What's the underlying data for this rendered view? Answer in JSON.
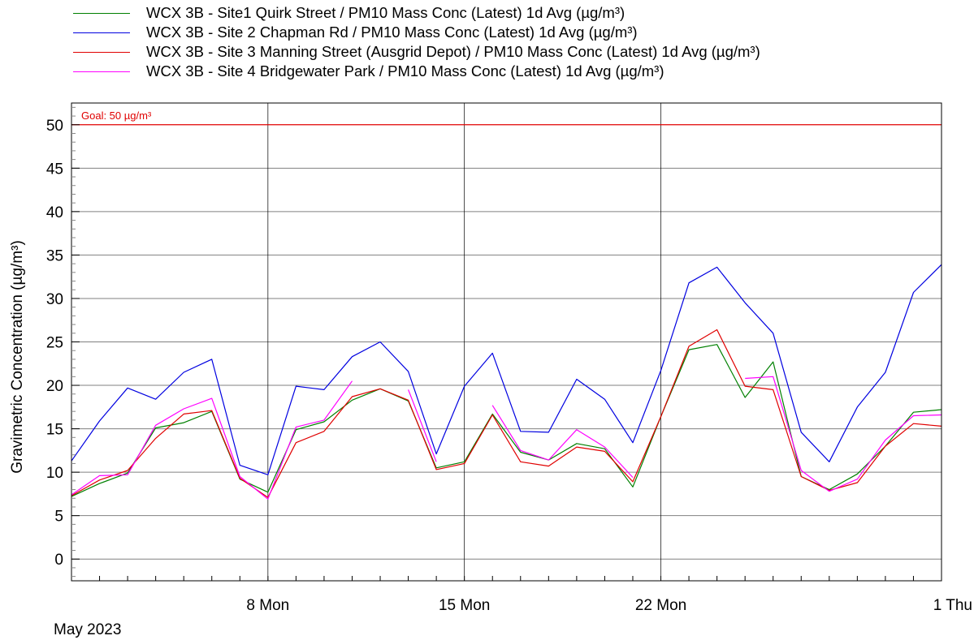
{
  "chart_data": {
    "type": "line",
    "ylabel": "Gravimetric Concentration (µg/m³)",
    "ylim": [
      -2.5,
      52.5
    ],
    "yticks": [
      0,
      5,
      10,
      15,
      20,
      25,
      30,
      35,
      40,
      45,
      50
    ],
    "xlim": [
      "2023-05-01",
      "2023-06-01"
    ],
    "xticks": [
      {
        "date": "2023-05-08",
        "label": "8 Mon"
      },
      {
        "date": "2023-05-15",
        "label": "15 Mon"
      },
      {
        "date": "2023-05-22",
        "label": "22 Mon"
      },
      {
        "date": "2023-06-01",
        "label": "1 Thu"
      }
    ],
    "period_label": "May 2023",
    "grid": true,
    "legend_position": "top",
    "goal": {
      "value": 50,
      "label": "Goal: 50 µg/m³",
      "color": "#e00000"
    },
    "x": [
      "2023-05-01",
      "2023-05-02",
      "2023-05-03",
      "2023-05-04",
      "2023-05-05",
      "2023-05-06",
      "2023-05-07",
      "2023-05-08",
      "2023-05-09",
      "2023-05-10",
      "2023-05-11",
      "2023-05-12",
      "2023-05-13",
      "2023-05-14",
      "2023-05-15",
      "2023-05-16",
      "2023-05-17",
      "2023-05-18",
      "2023-05-19",
      "2023-05-20",
      "2023-05-21",
      "2023-05-22",
      "2023-05-23",
      "2023-05-24",
      "2023-05-25",
      "2023-05-26",
      "2023-05-27",
      "2023-05-28",
      "2023-05-29",
      "2023-05-30",
      "2023-05-31",
      "2023-06-01"
    ],
    "series": [
      {
        "name": "WCX 3B - Site1 Quirk Street / PM10 Mass Conc (Latest) 1d Avg (µg/m³)",
        "color": "#008000",
        "values": [
          7.2,
          8.7,
          9.9,
          15.1,
          15.7,
          17.0,
          9.2,
          7.7,
          14.9,
          15.8,
          18.3,
          19.6,
          18.2,
          10.5,
          11.2,
          16.7,
          12.3,
          11.4,
          13.3,
          12.7,
          8.3,
          16.4,
          24.1,
          24.7,
          18.6,
          22.7,
          9.5,
          8.0,
          9.8,
          13.0,
          16.9,
          17.2
        ]
      },
      {
        "name": "WCX 3B - Site 2 Chapman Rd / PM10 Mass Conc (Latest) 1d Avg (µg/m³)",
        "color": "#0000e0",
        "values": [
          11.3,
          15.9,
          19.7,
          18.4,
          21.5,
          23.0,
          10.8,
          9.7,
          19.9,
          19.5,
          23.3,
          25.0,
          21.6,
          12.1,
          19.9,
          23.7,
          14.7,
          14.6,
          20.7,
          18.4,
          13.4,
          21.7,
          31.8,
          33.6,
          29.5,
          26.0,
          14.6,
          11.2,
          17.5,
          21.5,
          30.7,
          33.9
        ]
      },
      {
        "name": "WCX 3B - Site 3 Manning Street (Ausgrid Depot) / PM10 Mass Conc (Latest) 1d Avg (µg/m³)",
        "color": "#e00000",
        "values": [
          7.3,
          9.1,
          10.2,
          13.9,
          16.7,
          17.1,
          9.3,
          7.1,
          13.4,
          14.7,
          18.7,
          19.6,
          18.3,
          10.3,
          11.0,
          16.6,
          11.2,
          10.7,
          12.9,
          12.4,
          8.9,
          16.4,
          24.5,
          26.4,
          19.9,
          19.5,
          9.5,
          7.9,
          8.8,
          13.0,
          15.6,
          15.3
        ]
      },
      {
        "name": "WCX 3B - Site 4 Bridgewater Park / PM10 Mass Conc (Latest) 1d Avg (µg/m³)",
        "color": "#ff00ff",
        "values": [
          7.4,
          9.6,
          9.7,
          15.4,
          17.3,
          18.5,
          9.5,
          6.9,
          15.2,
          16.0,
          20.5,
          null,
          19.5,
          11.2,
          null,
          17.7,
          12.5,
          11.4,
          14.9,
          12.9,
          9.4,
          null,
          null,
          null,
          20.8,
          21.0,
          10.2,
          7.8,
          9.2,
          13.7,
          16.5,
          16.6
        ]
      }
    ]
  }
}
